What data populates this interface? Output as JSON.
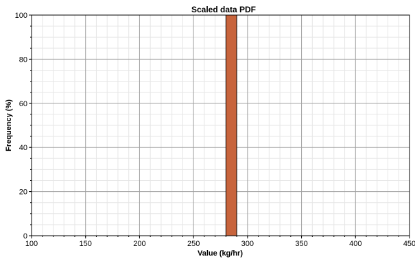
{
  "chart_data": {
    "type": "bar",
    "title": "Scaled data PDF",
    "xlabel": "Value (kg/hr)",
    "ylabel": "Frequency (%)",
    "xlim": [
      100,
      450
    ],
    "ylim": [
      0,
      100
    ],
    "x_ticks": [
      "100",
      "150",
      "200",
      "250",
      "300",
      "350",
      "400",
      "450"
    ],
    "y_ticks": [
      "0",
      "20",
      "40",
      "60",
      "80",
      "100"
    ],
    "grid": true,
    "bins": [
      {
        "x_start": 280,
        "x_end": 290,
        "value": 100
      }
    ],
    "colors": {
      "bar_fill": "#c8643c",
      "bar_stroke": "#000000",
      "major_grid": "#a0a0a0",
      "minor_grid": "#e6e6e6"
    }
  }
}
